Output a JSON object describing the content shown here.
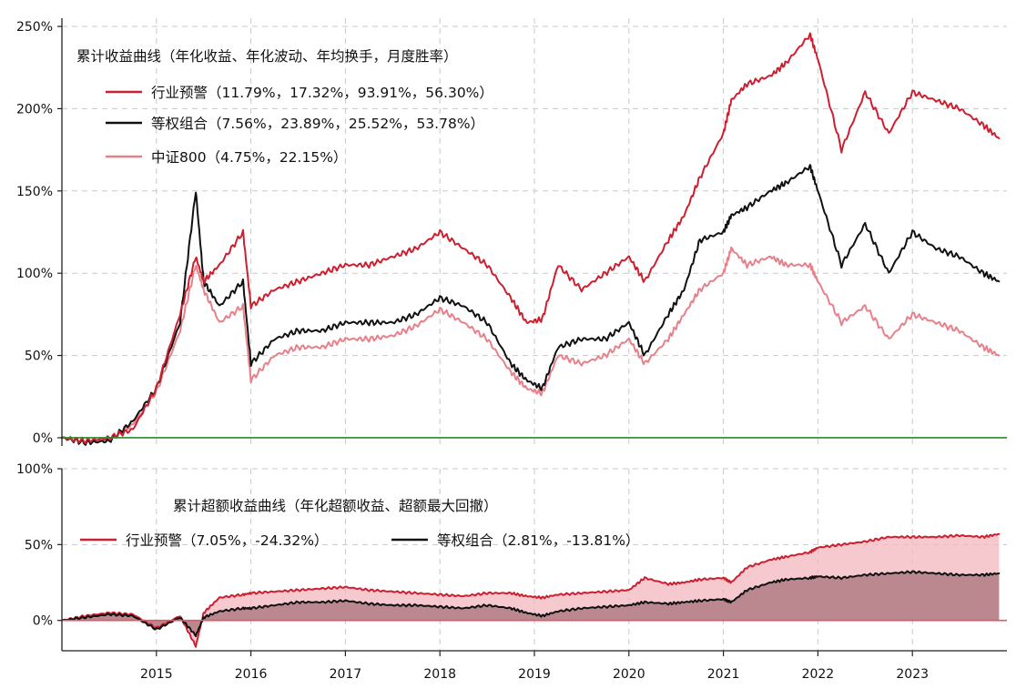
{
  "chart_data": [
    {
      "type": "line",
      "title": "累计收益曲线（年化收益、年化波动、年均换手，月度胜率）",
      "xlabel": "",
      "ylabel": "",
      "ylim": [
        -0.05,
        2.55
      ],
      "y_ticks": [
        0,
        0.5,
        1.0,
        1.5,
        2.0,
        2.5
      ],
      "y_tick_labels": [
        "0%",
        "50%",
        "100%",
        "150%",
        "200%",
        "250%"
      ],
      "legend_position": "top-left",
      "grid": true,
      "x": [
        "2014-01",
        "2014-04",
        "2014-07",
        "2014-10",
        "2015-01",
        "2015-04",
        "2015-06",
        "2015-07",
        "2015-09",
        "2015-12",
        "2016-01",
        "2016-04",
        "2016-07",
        "2016-10",
        "2017-01",
        "2017-04",
        "2017-07",
        "2017-10",
        "2018-01",
        "2018-04",
        "2018-07",
        "2018-10",
        "2018-12",
        "2019-02",
        "2019-04",
        "2019-07",
        "2019-10",
        "2020-01",
        "2020-03",
        "2020-06",
        "2020-08",
        "2020-10",
        "2021-01",
        "2021-02",
        "2021-04",
        "2021-07",
        "2021-09",
        "2021-12",
        "2022-01",
        "2022-04",
        "2022-07",
        "2022-10",
        "2023-01",
        "2023-04",
        "2023-07",
        "2023-10",
        "2023-12"
      ],
      "series": [
        {
          "name": "行业预警（11.79%，17.32%，93.91%，56.30%）",
          "color": "#cc1f2f",
          "values": [
            0.0,
            -0.02,
            0.0,
            0.05,
            0.3,
            0.75,
            1.1,
            0.95,
            1.05,
            1.25,
            0.8,
            0.9,
            0.95,
            1.0,
            1.05,
            1.05,
            1.1,
            1.15,
            1.25,
            1.15,
            1.05,
            0.85,
            0.7,
            0.72,
            1.05,
            0.9,
            1.0,
            1.1,
            0.95,
            1.2,
            1.35,
            1.58,
            1.85,
            2.05,
            2.15,
            2.2,
            2.28,
            2.45,
            2.3,
            1.75,
            2.1,
            1.85,
            2.1,
            2.05,
            2.0,
            1.9,
            1.82
          ]
        },
        {
          "name": "等权组合（7.56%，23.89%，25.52%，53.78%）",
          "color": "#111111",
          "values": [
            0.0,
            -0.03,
            -0.02,
            0.1,
            0.3,
            0.7,
            1.5,
            0.95,
            0.8,
            0.95,
            0.45,
            0.6,
            0.65,
            0.65,
            0.7,
            0.7,
            0.7,
            0.75,
            0.85,
            0.8,
            0.7,
            0.45,
            0.35,
            0.3,
            0.55,
            0.6,
            0.6,
            0.7,
            0.5,
            0.75,
            0.9,
            1.2,
            1.25,
            1.35,
            1.4,
            1.5,
            1.55,
            1.65,
            1.5,
            1.05,
            1.3,
            1.0,
            1.25,
            1.15,
            1.1,
            1.0,
            0.95
          ]
        },
        {
          "name": "中证800（4.75%，22.15%）",
          "color": "#e8808a",
          "values": [
            0.0,
            -0.02,
            -0.01,
            0.08,
            0.28,
            0.65,
            1.05,
            0.9,
            0.7,
            0.8,
            0.35,
            0.5,
            0.55,
            0.55,
            0.6,
            0.6,
            0.62,
            0.68,
            0.78,
            0.7,
            0.6,
            0.4,
            0.3,
            0.27,
            0.5,
            0.45,
            0.5,
            0.6,
            0.45,
            0.6,
            0.75,
            0.9,
            1.0,
            1.15,
            1.05,
            1.1,
            1.05,
            1.05,
            0.95,
            0.7,
            0.8,
            0.6,
            0.75,
            0.7,
            0.65,
            0.55,
            0.5
          ]
        }
      ],
      "baseline": {
        "value": 0,
        "color": "#2a8a2a"
      }
    },
    {
      "type": "area",
      "title": "累计超额收益曲线（年化超额收益、超额最大回撤）",
      "xlabel": "",
      "ylabel": "",
      "ylim": [
        -0.2,
        1.0
      ],
      "y_ticks": [
        0,
        0.5,
        1.0
      ],
      "y_tick_labels": [
        "0%",
        "50%",
        "100%"
      ],
      "x_ticks": [
        "2015",
        "2016",
        "2017",
        "2018",
        "2019",
        "2020",
        "2021",
        "2022",
        "2023"
      ],
      "legend_position": "top",
      "grid": true,
      "x": [
        "2014-01",
        "2014-04",
        "2014-07",
        "2014-10",
        "2015-01",
        "2015-04",
        "2015-06",
        "2015-07",
        "2015-09",
        "2015-12",
        "2016-01",
        "2016-04",
        "2016-07",
        "2016-10",
        "2017-01",
        "2017-04",
        "2017-07",
        "2017-10",
        "2018-01",
        "2018-04",
        "2018-07",
        "2018-10",
        "2018-12",
        "2019-02",
        "2019-04",
        "2019-07",
        "2019-10",
        "2020-01",
        "2020-03",
        "2020-06",
        "2020-08",
        "2020-10",
        "2021-01",
        "2021-02",
        "2021-04",
        "2021-07",
        "2021-09",
        "2021-12",
        "2022-01",
        "2022-04",
        "2022-07",
        "2022-10",
        "2023-01",
        "2023-04",
        "2023-07",
        "2023-10",
        "2023-12"
      ],
      "series": [
        {
          "name": "行业预警（7.05%，-24.32%）",
          "color": "#cc1f2f",
          "fill": "#f2b7bd",
          "values": [
            0.0,
            0.03,
            0.05,
            0.04,
            -0.05,
            0.03,
            -0.17,
            0.05,
            0.15,
            0.17,
            0.18,
            0.19,
            0.2,
            0.21,
            0.22,
            0.2,
            0.19,
            0.18,
            0.17,
            0.16,
            0.18,
            0.18,
            0.16,
            0.15,
            0.17,
            0.18,
            0.19,
            0.2,
            0.28,
            0.24,
            0.25,
            0.27,
            0.28,
            0.25,
            0.35,
            0.4,
            0.42,
            0.45,
            0.48,
            0.5,
            0.52,
            0.55,
            0.55,
            0.55,
            0.56,
            0.55,
            0.57
          ]
        },
        {
          "name": "等权组合（2.81%，-13.81%）",
          "color": "#111111",
          "fill": "#b07c84",
          "values": [
            0.0,
            0.02,
            0.04,
            0.03,
            -0.06,
            0.02,
            -0.1,
            0.02,
            0.06,
            0.08,
            0.08,
            0.1,
            0.12,
            0.12,
            0.13,
            0.11,
            0.1,
            0.1,
            0.09,
            0.08,
            0.1,
            0.08,
            0.05,
            0.03,
            0.06,
            0.08,
            0.09,
            0.1,
            0.12,
            0.11,
            0.12,
            0.13,
            0.14,
            0.12,
            0.2,
            0.25,
            0.27,
            0.28,
            0.29,
            0.28,
            0.3,
            0.31,
            0.32,
            0.31,
            0.3,
            0.3,
            0.31
          ]
        }
      ],
      "baseline": {
        "value": 0,
        "color": "#e05a66"
      }
    }
  ]
}
